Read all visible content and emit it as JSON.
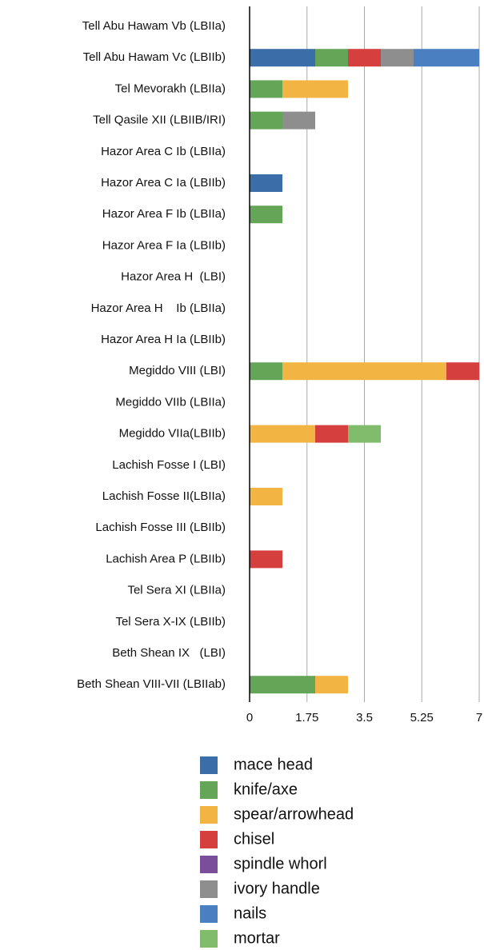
{
  "chart_data": {
    "type": "stacked-barh",
    "categories": [
      "Tell Abu Hawam Vb (LBIIa)",
      "Tell Abu Hawam Vc (LBIIb)",
      "Tel Mevorakh (LBIIa)",
      "Tell Qasile XII (LBIIB/IRI)",
      "Hazor Area C Ib (LBIIa)",
      "Hazor Area C Ia (LBIIb)",
      "Hazor Area F Ib (LBIIa)",
      "Hazor Area F Ia (LBIIb)",
      "Hazor Area H  (LBI)",
      "Hazor Area H    Ib (LBIIa)",
      "Hazor Area H Ia (LBIIb)",
      "Megiddo VIII (LBI)",
      "Megiddo VIIb (LBIIa)",
      "Megiddo VIIa(LBIIb)",
      "Lachish Fosse I (LBI)",
      "Lachish Fosse II(LBIIa)",
      "Lachish Fosse III (LBIIb)",
      "Lachish Area P (LBIIb)",
      "Tel Sera XI (LBIIa)",
      "Tel Sera X-IX (LBIIb)",
      "Beth Shean IX   (LBI)",
      "Beth Shean VIII-VII (LBIIab)"
    ],
    "series": [
      {
        "name": "mace head",
        "color": "#3b6ea8",
        "values": [
          0,
          2,
          0,
          0,
          0,
          1,
          0,
          0,
          0,
          0,
          0,
          0,
          0,
          0,
          0,
          0,
          0,
          0,
          0,
          0,
          0,
          0
        ]
      },
      {
        "name": "knife/axe",
        "color": "#64a557",
        "values": [
          0,
          1,
          1,
          1,
          0,
          0,
          1,
          0,
          0,
          0,
          0,
          1,
          0,
          0,
          0,
          0,
          0,
          0,
          0,
          0,
          0,
          2
        ]
      },
      {
        "name": "spear/arrowhead",
        "color": "#f2b443",
        "values": [
          0,
          0,
          2,
          0,
          0,
          0,
          0,
          0,
          0,
          0,
          0,
          5,
          0,
          2,
          0,
          1,
          0,
          0,
          0,
          0,
          0,
          1
        ]
      },
      {
        "name": "chisel",
        "color": "#d5403e",
        "values": [
          0,
          1,
          0,
          0,
          0,
          0,
          0,
          0,
          0,
          0,
          0,
          1,
          0,
          1,
          0,
          0,
          0,
          1,
          0,
          0,
          0,
          0
        ]
      },
      {
        "name": "spindle whorl",
        "color": "#7b4e9c",
        "values": [
          0,
          0,
          0,
          0,
          0,
          0,
          0,
          0,
          0,
          0,
          0,
          0,
          0,
          0,
          0,
          0,
          0,
          0,
          0,
          0,
          0,
          0
        ]
      },
      {
        "name": "ivory handle",
        "color": "#8e8e8e",
        "values": [
          0,
          1,
          0,
          1,
          0,
          0,
          0,
          0,
          0,
          0,
          0,
          0,
          0,
          0,
          0,
          0,
          0,
          0,
          0,
          0,
          0,
          0
        ]
      },
      {
        "name": "nails",
        "color": "#4a80c2",
        "values": [
          0,
          2,
          0,
          0,
          0,
          0,
          0,
          0,
          0,
          0,
          0,
          0,
          0,
          0,
          0,
          0,
          0,
          0,
          0,
          0,
          0,
          0
        ]
      },
      {
        "name": "mortar",
        "color": "#80bc6c",
        "values": [
          0,
          0,
          0,
          0,
          0,
          0,
          0,
          0,
          0,
          0,
          0,
          0,
          0,
          1,
          0,
          0,
          0,
          0,
          0,
          0,
          0,
          0
        ]
      }
    ],
    "xlim": [
      0,
      7
    ],
    "xticks": [
      0,
      1.75,
      3.5,
      5.25,
      7
    ],
    "grid": true,
    "legend": "bottom"
  }
}
